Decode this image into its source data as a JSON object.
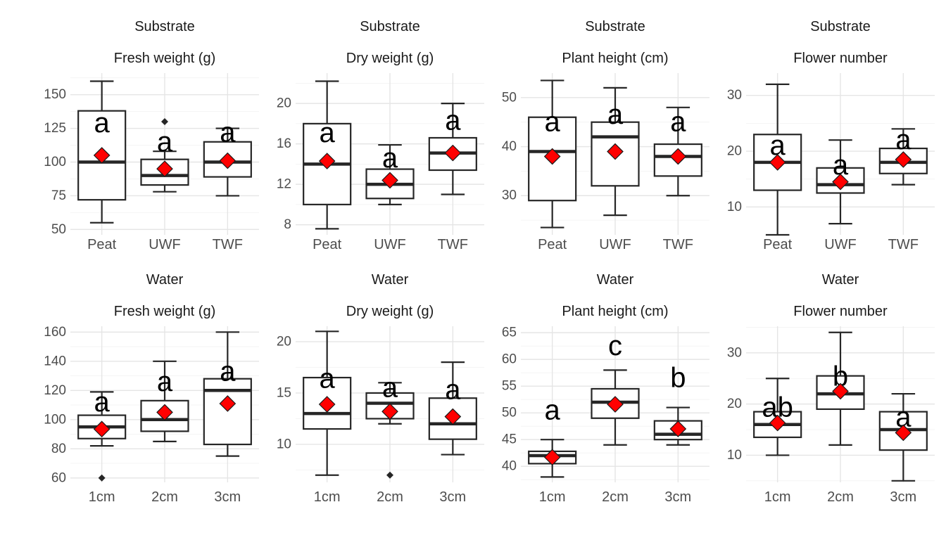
{
  "chart_data": [
    {
      "type": "boxplot",
      "facet": "Substrate",
      "title": "Fresh weight (g)",
      "categories": [
        "Peat",
        "UWF",
        "TWF"
      ],
      "yticks": [
        50,
        75,
        100,
        125,
        150
      ],
      "ylim": [
        46,
        166
      ],
      "boxes": [
        {
          "category": "Peat",
          "min": 55,
          "q1": 72,
          "median": 100,
          "q3": 138,
          "max": 160,
          "mean": 105,
          "outliers": [],
          "letter": "a",
          "letter_y": 129
        },
        {
          "category": "UWF",
          "min": 78,
          "q1": 83,
          "median": 90,
          "q3": 102,
          "max": 108,
          "mean": 95,
          "outliers": [
            130
          ],
          "letter": "a",
          "letter_y": 115
        },
        {
          "category": "TWF",
          "min": 75,
          "q1": 89,
          "median": 100,
          "q3": 115,
          "max": 125,
          "mean": 101,
          "outliers": [],
          "letter": "a",
          "letter_y": 122
        }
      ]
    },
    {
      "type": "boxplot",
      "facet": "Substrate",
      "title": "Dry weight (g)",
      "categories": [
        "Peat",
        "UWF",
        "TWF"
      ],
      "yticks": [
        8,
        12,
        16,
        20
      ],
      "ylim": [
        7,
        23
      ],
      "boxes": [
        {
          "category": "Peat",
          "min": 7.6,
          "q1": 10,
          "median": 14,
          "q3": 18,
          "max": 22.2,
          "mean": 14.3,
          "outliers": [],
          "letter": "a",
          "letter_y": 17.1
        },
        {
          "category": "UWF",
          "min": 10,
          "q1": 10.6,
          "median": 12,
          "q3": 13.5,
          "max": 15.9,
          "mean": 12.4,
          "outliers": [],
          "letter": "a",
          "letter_y": 14.6
        },
        {
          "category": "TWF",
          "min": 11,
          "q1": 13.4,
          "median": 15.1,
          "q3": 16.6,
          "max": 20,
          "mean": 15.1,
          "outliers": [],
          "letter": "a",
          "letter_y": 18.3
        }
      ]
    },
    {
      "type": "boxplot",
      "facet": "Substrate",
      "title": "Plant height (cm)",
      "categories": [
        "Peat",
        "UWF",
        "TWF"
      ],
      "yticks": [
        30,
        40,
        50
      ],
      "ylim": [
        22,
        55
      ],
      "boxes": [
        {
          "category": "Peat",
          "min": 23.5,
          "q1": 29,
          "median": 39,
          "q3": 46,
          "max": 53.5,
          "mean": 38,
          "outliers": [],
          "letter": "a",
          "letter_y": 45
        },
        {
          "category": "UWF",
          "min": 26,
          "q1": 32,
          "median": 42,
          "q3": 45,
          "max": 52,
          "mean": 39,
          "outliers": [],
          "letter": "a",
          "letter_y": 46.5
        },
        {
          "category": "TWF",
          "min": 30,
          "q1": 34,
          "median": 38,
          "q3": 40.5,
          "max": 48,
          "mean": 38,
          "outliers": [],
          "letter": "a",
          "letter_y": 45
        }
      ]
    },
    {
      "type": "boxplot",
      "facet": "Substrate",
      "title": "Flower number",
      "categories": [
        "Peat",
        "UWF",
        "TWF"
      ],
      "yticks": [
        10,
        20,
        30
      ],
      "ylim": [
        5,
        34
      ],
      "boxes": [
        {
          "category": "Peat",
          "min": 5,
          "q1": 13,
          "median": 18,
          "q3": 23,
          "max": 32,
          "mean": 18,
          "outliers": [],
          "letter": "a",
          "letter_y": 21
        },
        {
          "category": "UWF",
          "min": 7,
          "q1": 12.5,
          "median": 14,
          "q3": 17,
          "max": 22,
          "mean": 14.5,
          "outliers": [],
          "letter": "a",
          "letter_y": 17.5
        },
        {
          "category": "TWF",
          "min": 14,
          "q1": 16,
          "median": 18,
          "q3": 20.5,
          "max": 24,
          "mean": 18.5,
          "outliers": [],
          "letter": "a",
          "letter_y": 22
        }
      ]
    },
    {
      "type": "boxplot",
      "facet": "Water",
      "title": "Fresh weight (g)",
      "categories": [
        "1cm",
        "2cm",
        "3cm"
      ],
      "yticks": [
        60,
        80,
        100,
        120,
        140,
        160
      ],
      "ylim": [
        57,
        164
      ],
      "boxes": [
        {
          "category": "1cm",
          "min": 82,
          "q1": 87,
          "median": 95,
          "q3": 103,
          "max": 119,
          "mean": 93.5,
          "outliers": [
            60
          ],
          "letter": "a",
          "letter_y": 112
        },
        {
          "category": "2cm",
          "min": 85,
          "q1": 92,
          "median": 100,
          "q3": 113,
          "max": 140,
          "mean": 105,
          "outliers": [],
          "letter": "a",
          "letter_y": 126
        },
        {
          "category": "3cm",
          "min": 75,
          "q1": 83,
          "median": 120,
          "q3": 128,
          "max": 160,
          "mean": 111,
          "outliers": [],
          "letter": "a",
          "letter_y": 133
        }
      ]
    },
    {
      "type": "boxplot",
      "facet": "Water",
      "title": "Dry weight (g)",
      "categories": [
        "1cm",
        "2cm",
        "3cm"
      ],
      "yticks": [
        10,
        15,
        20
      ],
      "ylim": [
        6.3,
        21.5
      ],
      "boxes": [
        {
          "category": "1cm",
          "min": 7,
          "q1": 11.5,
          "median": 13,
          "q3": 16.5,
          "max": 21,
          "mean": 13.9,
          "outliers": [],
          "letter": "a",
          "letter_y": 16.4
        },
        {
          "category": "2cm",
          "min": 12,
          "q1": 12.5,
          "median": 14,
          "q3": 15,
          "max": 16,
          "mean": 13.2,
          "outliers": [
            7
          ],
          "letter": "a",
          "letter_y": 15.5
        },
        {
          "category": "3cm",
          "min": 9,
          "q1": 10.5,
          "median": 12,
          "q3": 14.5,
          "max": 18,
          "mean": 12.7,
          "outliers": [],
          "letter": "a",
          "letter_y": 15.3
        }
      ]
    },
    {
      "type": "boxplot",
      "facet": "Water",
      "title": "Plant height (cm)",
      "categories": [
        "1cm",
        "2cm",
        "3cm"
      ],
      "yticks": [
        40,
        45,
        50,
        55,
        60,
        65
      ],
      "ylim": [
        37,
        66.2
      ],
      "boxes": [
        {
          "category": "1cm",
          "min": 38,
          "q1": 40.5,
          "median": 42,
          "q3": 42.8,
          "max": 45,
          "mean": 41.7,
          "outliers": [],
          "letter": "a",
          "letter_y": 50.5
        },
        {
          "category": "2cm",
          "min": 44,
          "q1": 49,
          "median": 52,
          "q3": 54.5,
          "max": 58,
          "mean": 51.6,
          "outliers": [],
          "letter": "c",
          "letter_y": 62.5
        },
        {
          "category": "3cm",
          "min": 44,
          "q1": 45,
          "median": 46,
          "q3": 48.5,
          "max": 51,
          "mean": 47,
          "outliers": [],
          "letter": "b",
          "letter_y": 56.5
        }
      ]
    },
    {
      "type": "boxplot",
      "facet": "Water",
      "title": "Flower number",
      "categories": [
        "1cm",
        "2cm",
        "3cm"
      ],
      "yticks": [
        10,
        20,
        30
      ],
      "ylim": [
        4.7,
        35.2
      ],
      "boxes": [
        {
          "category": "1cm",
          "min": 10,
          "q1": 13.5,
          "median": 16,
          "q3": 18.5,
          "max": 25,
          "mean": 16.3,
          "outliers": [],
          "letter": "ab",
          "letter_y": 19.3
        },
        {
          "category": "2cm",
          "min": 12,
          "q1": 19,
          "median": 22,
          "q3": 25.5,
          "max": 34,
          "mean": 22.5,
          "outliers": [],
          "letter": "b",
          "letter_y": 25.4
        },
        {
          "category": "3cm",
          "min": 5,
          "q1": 11,
          "median": 15,
          "q3": 18.5,
          "max": 22,
          "mean": 14.4,
          "outliers": [],
          "letter": "a",
          "letter_y": 17.4
        }
      ]
    }
  ],
  "colors": {
    "mean_marker": "#ff0000",
    "box_line": "#262626",
    "grid": "#e5e5e5"
  }
}
